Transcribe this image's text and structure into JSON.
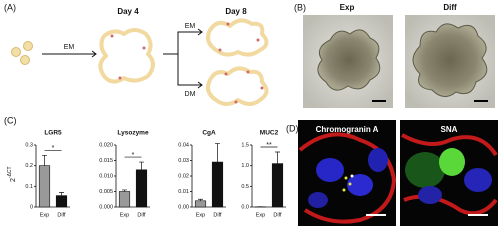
{
  "panel_labels": {
    "a": "(A)",
    "b": "(B)",
    "c": "(C)",
    "d": "(D)"
  },
  "diagram": {
    "day4": "Day 4",
    "day8": "Day 8",
    "arrow_first": "EM",
    "arrow_em": "EM",
    "arrow_dm": "DM"
  },
  "images": {
    "exp": "Exp",
    "diff": "Diff",
    "chromogranin": "Chromogranin A",
    "sna": "SNA"
  },
  "chart_data": [
    {
      "type": "bar",
      "title": "LGR5",
      "y_label": "2",
      "y_label_exponent": "-ΔCT",
      "categories": [
        "Exp",
        "Diff"
      ],
      "values": [
        0.2,
        0.055
      ],
      "errors": [
        0.05,
        0.015
      ],
      "colors": [
        "#999999",
        "#111111"
      ],
      "ylim": [
        0,
        0.3
      ],
      "yticks": [
        0,
        0.1,
        0.2,
        0.3
      ],
      "significance": "*"
    },
    {
      "type": "bar",
      "title": "Lysozyme",
      "categories": [
        "Exp",
        "Diff"
      ],
      "values": [
        0.005,
        0.012
      ],
      "errors": [
        0.0005,
        0.0025
      ],
      "colors": [
        "#999999",
        "#111111"
      ],
      "ylim": [
        0,
        0.02
      ],
      "yticks": [
        {
          "value": 0,
          "label": "0.000"
        },
        {
          "value": 0.005,
          "label": "0.005"
        },
        {
          "value": 0.01,
          "label": "0.010"
        },
        {
          "value": 0.015,
          "label": "0.015"
        },
        {
          "value": 0.02,
          "label": "0.020"
        }
      ],
      "significance": "*"
    },
    {
      "type": "bar",
      "title": "CgA",
      "categories": [
        "Exp",
        "Diff"
      ],
      "values": [
        0.004,
        0.029
      ],
      "errors": [
        0.001,
        0.012
      ],
      "colors": [
        "#999999",
        "#111111"
      ],
      "ylim": [
        0,
        0.04
      ],
      "yticks": [
        {
          "value": 0,
          "label": "0.00"
        },
        {
          "value": 0.01,
          "label": "0.01"
        },
        {
          "value": 0.02,
          "label": "0.02"
        },
        {
          "value": 0.03,
          "label": "0.03"
        },
        {
          "value": 0.04,
          "label": "0.04"
        }
      ]
    },
    {
      "type": "bar",
      "title": "MUC2",
      "categories": [
        "Exp",
        "Diff"
      ],
      "values": [
        0.005,
        1.05
      ],
      "errors": [
        0.003,
        0.28
      ],
      "colors": [
        "#999999",
        "#111111"
      ],
      "ylim": [
        0,
        1.5
      ],
      "yticks": [
        {
          "value": 0,
          "label": "0.0"
        },
        {
          "value": 0.5,
          "label": "0.5"
        },
        {
          "value": 1,
          "label": "1.0"
        },
        {
          "value": 1.5,
          "label": "1.5"
        }
      ],
      "significance": "**"
    }
  ]
}
